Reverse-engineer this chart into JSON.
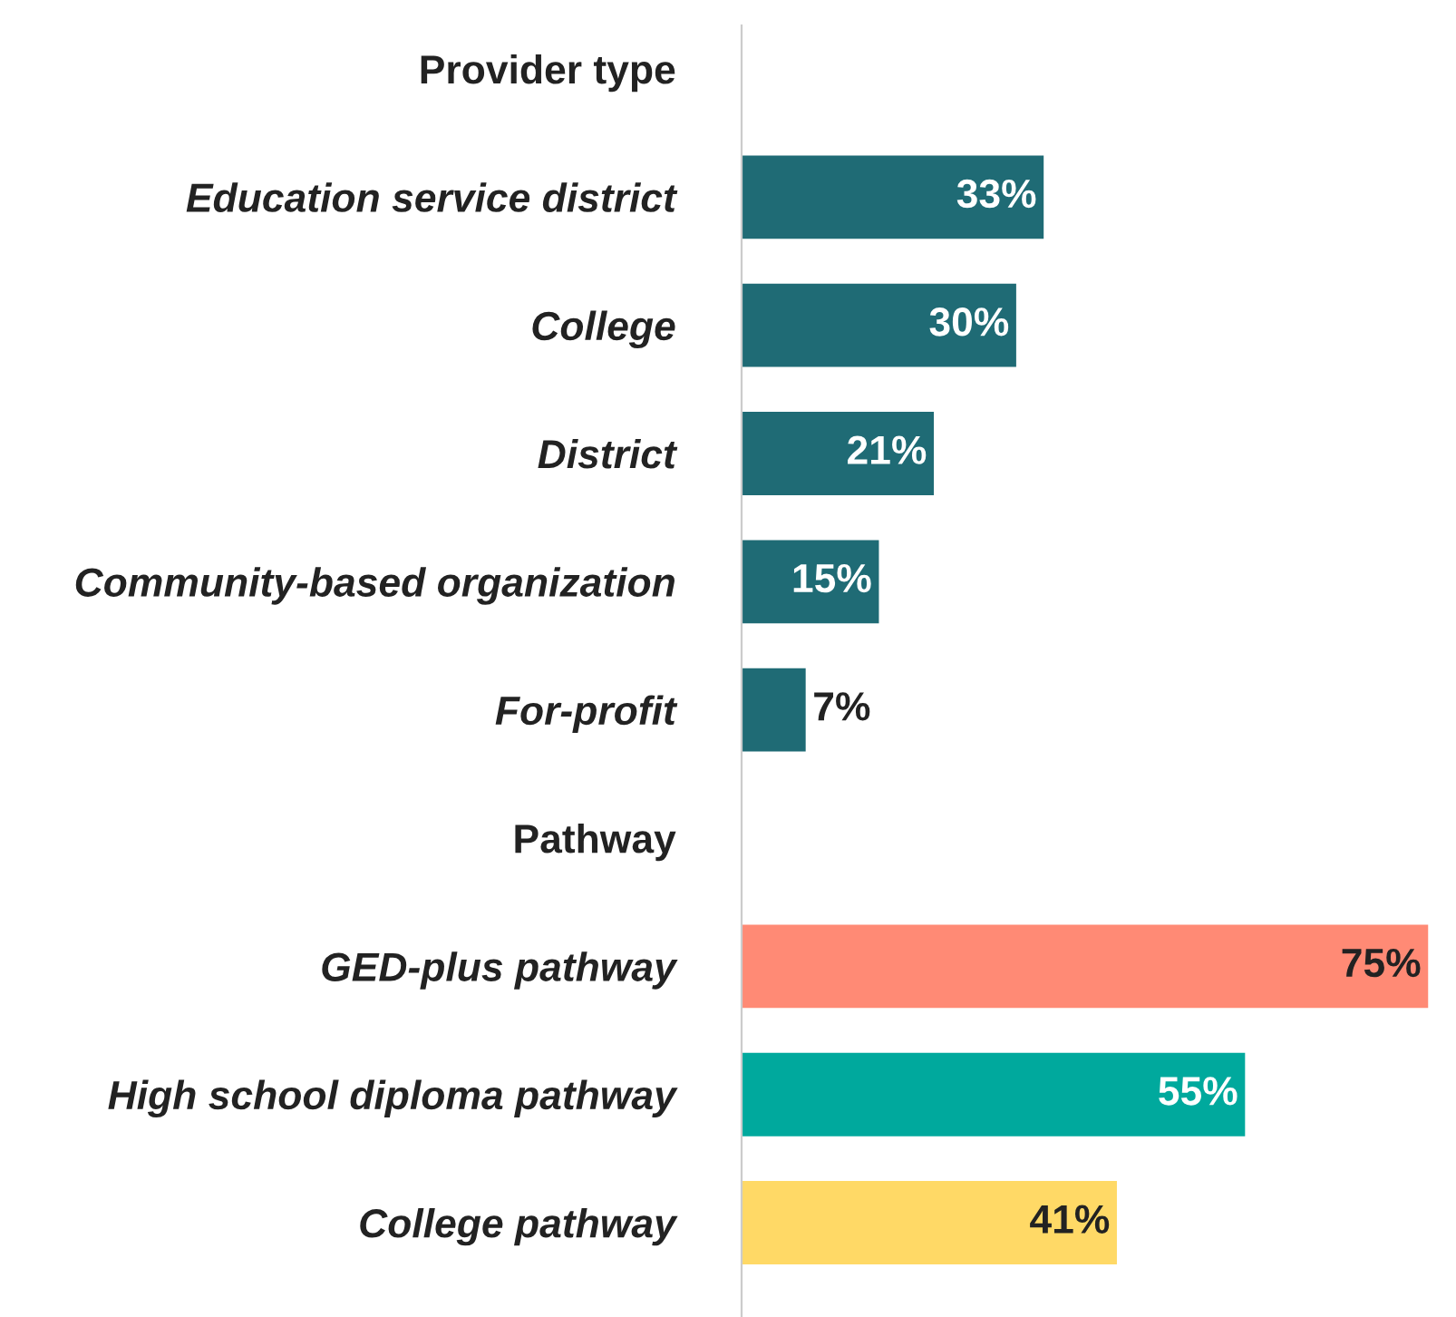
{
  "chart_data": {
    "type": "bar",
    "orientation": "horizontal",
    "categories": [
      "Provider type",
      "Education service district",
      "College",
      "District",
      "Community-based organization",
      "For-profit",
      "Pathway",
      "GED-plus pathway",
      "High school diploma pathway",
      "College pathway"
    ],
    "values": [
      null,
      33,
      30,
      21,
      15,
      7,
      null,
      75,
      55,
      41
    ],
    "colors": [
      null,
      "#1f6b75",
      "#1f6b75",
      "#1f6b75",
      "#1f6b75",
      "#1f6b75",
      null,
      "#ff8a75",
      "#00a99d",
      "#ffd966"
    ],
    "value_labels": [
      null,
      "33%",
      "30%",
      "21%",
      "15%",
      "7%",
      null,
      "75%",
      "55%",
      "41%"
    ],
    "tick_labels": "y",
    "grid": false,
    "legend": false
  }
}
